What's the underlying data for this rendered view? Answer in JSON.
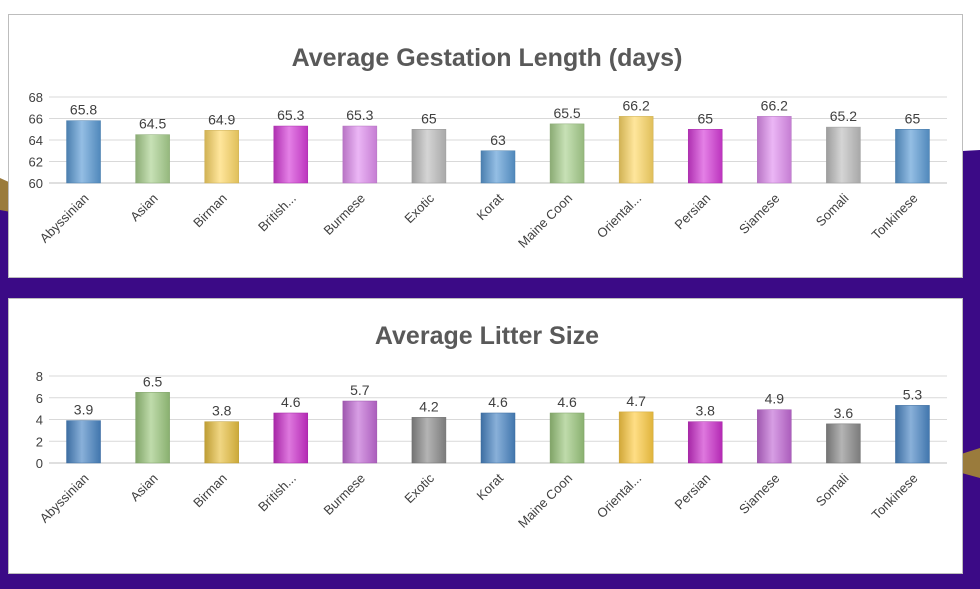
{
  "chart_data": [
    {
      "type": "bar",
      "title": "Average Gestation Length (days)",
      "categories": [
        "Abyssinian",
        "Asian",
        "Birman",
        "British...",
        "Burmese",
        "Exotic",
        "Korat",
        "Maine Coon",
        "Oriental...",
        "Persian",
        "Siamese",
        "Somali",
        "Tonkinese"
      ],
      "values": [
        65.8,
        64.5,
        64.9,
        65.3,
        65.3,
        65,
        63,
        65.5,
        66.2,
        65,
        66.2,
        65.2,
        65
      ],
      "value_labels": [
        "65.8",
        "64.5",
        "64.9",
        "65.3",
        "65.3",
        "65",
        "63",
        "65.5",
        "66.2",
        "65",
        "66.2",
        "65.2",
        "65"
      ],
      "ylim": [
        60,
        68
      ],
      "yticks": [
        "60",
        "62",
        "64",
        "66",
        "68"
      ],
      "grid": true,
      "bar_colors": [
        "#5b9bd5",
        "#a9d18e",
        "#ffd966",
        "#d63bd8",
        "#e08ef0",
        "#bfbfbf",
        "#5b9bd5",
        "#a9d18e",
        "#ffd966",
        "#d63bd8",
        "#e08ef0",
        "#bfbfbf",
        "#5b9bd5"
      ]
    },
    {
      "type": "bar",
      "title": "Average Litter Size",
      "categories": [
        "Abyssinian",
        "Asian",
        "Birman",
        "British...",
        "Burmese",
        "Exotic",
        "Korat",
        "Maine Coon",
        "Oriental...",
        "Persian",
        "Siamese",
        "Somali",
        "Tonkinese"
      ],
      "values": [
        3.9,
        6.5,
        3.8,
        4.6,
        5.7,
        4.2,
        4.6,
        4.6,
        4.7,
        3.8,
        4.9,
        3.6,
        5.3
      ],
      "value_labels": [
        "3.9",
        "6.5",
        "3.8",
        "4.6",
        "5.7",
        "4.2",
        "4.6",
        "4.6",
        "4.7",
        "3.8",
        "4.9",
        "3.6",
        "5.3"
      ],
      "ylim": [
        0,
        8
      ],
      "yticks": [
        "0",
        "2",
        "4",
        "6",
        "8"
      ],
      "grid": true,
      "bar_colors": [
        "#4a86c5",
        "#9cc87e",
        "#e8c040",
        "#cc2fcc",
        "#c26ad6",
        "#8c8c8c",
        "#4a86c5",
        "#9cc87e",
        "#ffcc44",
        "#cc2fcc",
        "#c26ad6",
        "#8c8c8c",
        "#4a86c5"
      ]
    }
  ],
  "colors": {
    "background_purple": "#3b0a86",
    "accent_gold": "#9a7b3c"
  }
}
